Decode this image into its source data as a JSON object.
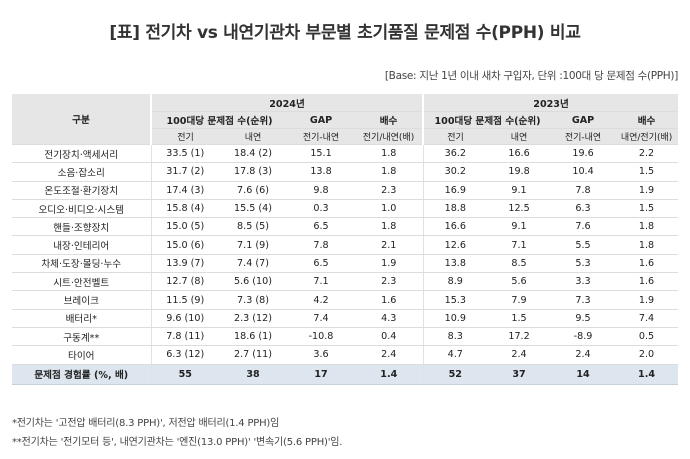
{
  "title": "[표] 전기차 vs 내연기관차 부문별 초기품질 문제점 수(PPH) 비교",
  "base_note": "[Base: 지난 1년 이내 새차 구입자, 단위 :100대 당 문제점 수(PPH)]",
  "table": {
    "category_header": "구분",
    "years": [
      "2024년",
      "2023년"
    ],
    "group_headers": [
      "100대당 문제점 수(순위)",
      "GAP",
      "배수"
    ],
    "sub_headers": {
      "y2024": [
        "전기",
        "내연",
        "전기-내연",
        "전기/내연(배)"
      ],
      "y2023": [
        "전기",
        "내연",
        "전기-내연",
        "내연/전기(배)"
      ]
    },
    "rows": [
      {
        "label": "전기장치·액세서리",
        "cells": [
          "33.5 (1)",
          "18.4 (2)",
          "15.1",
          "1.8",
          "36.2",
          "16.6",
          "19.6",
          "2.2"
        ]
      },
      {
        "label": "소음·잡소리",
        "cells": [
          "31.7 (2)",
          "17.8 (3)",
          "13.8",
          "1.8",
          "30.2",
          "19.8",
          "10.4",
          "1.5"
        ]
      },
      {
        "label": "온도조절·환기장치",
        "cells": [
          "17.4 (3)",
          "7.6 (6)",
          "9.8",
          "2.3",
          "16.9",
          "9.1",
          "7.8",
          "1.9"
        ]
      },
      {
        "label": "오디오·비디오·시스템",
        "cells": [
          "15.8 (4)",
          "15.5 (4)",
          "0.3",
          "1.0",
          "18.8",
          "12.5",
          "6.3",
          "1.5"
        ]
      },
      {
        "label": "핸들·조향장치",
        "cells": [
          "15.0 (5)",
          "8.5 (5)",
          "6.5",
          "1.8",
          "16.6",
          "9.1",
          "7.6",
          "1.8"
        ]
      },
      {
        "label": "내장·인테리어",
        "cells": [
          "15.0 (6)",
          "7.1 (9)",
          "7.8",
          "2.1",
          "12.6",
          "7.1",
          "5.5",
          "1.8"
        ]
      },
      {
        "label": "차체·도장·몰딩·누수",
        "cells": [
          "13.9 (7)",
          "7.4 (7)",
          "6.5",
          "1.9",
          "13.8",
          "8.5",
          "5.3",
          "1.6"
        ]
      },
      {
        "label": "시트·안전벨트",
        "cells": [
          "12.7 (8)",
          "5.6 (10)",
          "7.1",
          "2.3",
          "8.9",
          "5.6",
          "3.3",
          "1.6"
        ]
      },
      {
        "label": "브레이크",
        "cells": [
          "11.5 (9)",
          "7.3 (8)",
          "4.2",
          "1.6",
          "15.3",
          "7.9",
          "7.3",
          "1.9"
        ]
      },
      {
        "label": "배터리*",
        "cells": [
          "9.6 (10)",
          "2.3 (12)",
          "7.4",
          "4.3",
          "10.9",
          "1.5",
          "9.5",
          "7.4"
        ]
      },
      {
        "label": "구동계**",
        "cells": [
          "7.8 (11)",
          "18.6 (1)",
          "-10.8",
          "0.4",
          "8.3",
          "17.2",
          "-8.9",
          "0.5"
        ]
      },
      {
        "label": "타이어",
        "cells": [
          "6.3 (12)",
          "2.7 (11)",
          "3.6",
          "2.4",
          "4.7",
          "2.4",
          "2.4",
          "2.0"
        ]
      }
    ],
    "total": {
      "label": "문제점 경험률 (%, 배)",
      "cells": [
        "55",
        "38",
        "17",
        "1.4",
        "52",
        "37",
        "14",
        "1.4"
      ]
    }
  },
  "notes": [
    "*전기차는 '고전압 배터리(8.3 PPH)', 저전압 배터리(1.4 PPH)임",
    "**전기차는 '전기모터 등', 내연기관차는 '엔진(13.0 PPH)' '변속기(5.6 PPH)'임."
  ]
}
